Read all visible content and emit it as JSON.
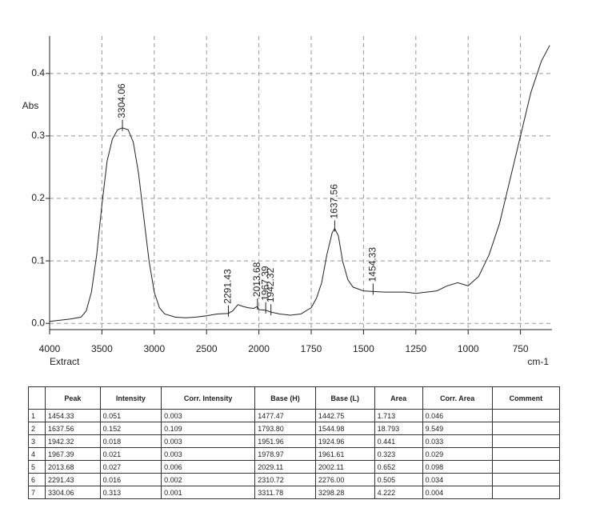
{
  "chart_data": {
    "type": "line",
    "ylabel": "Abs",
    "xlabel": "cm-1",
    "sample": "Extract",
    "x": [
      4000,
      3900,
      3800,
      3700,
      3650,
      3600,
      3550,
      3500,
      3450,
      3400,
      3350,
      3304.06,
      3250,
      3200,
      3150,
      3100,
      3050,
      3000,
      2950,
      2900,
      2800,
      2700,
      2600,
      2500,
      2400,
      2291.43,
      2250,
      2200,
      2150,
      2100,
      2050,
      2013.68,
      2000,
      1967.39,
      1942.32,
      1900,
      1850,
      1800,
      1750,
      1725,
      1700,
      1675,
      1650,
      1637.56,
      1620,
      1600,
      1575,
      1550,
      1500,
      1454.33,
      1400,
      1300,
      1250,
      1200,
      1150,
      1100,
      1050,
      1000,
      950,
      900,
      850,
      800,
      750,
      700,
      650,
      610
    ],
    "values": [
      0.003,
      0.005,
      0.007,
      0.01,
      0.02,
      0.05,
      0.11,
      0.19,
      0.26,
      0.295,
      0.31,
      0.313,
      0.31,
      0.29,
      0.24,
      0.17,
      0.1,
      0.05,
      0.025,
      0.015,
      0.01,
      0.009,
      0.01,
      0.012,
      0.015,
      0.016,
      0.02,
      0.03,
      0.027,
      0.025,
      0.024,
      0.027,
      0.022,
      0.021,
      0.018,
      0.015,
      0.013,
      0.015,
      0.025,
      0.04,
      0.065,
      0.11,
      0.145,
      0.152,
      0.14,
      0.1,
      0.07,
      0.058,
      0.052,
      0.051,
      0.05,
      0.05,
      0.048,
      0.05,
      0.052,
      0.06,
      0.065,
      0.06,
      0.075,
      0.11,
      0.16,
      0.23,
      0.3,
      0.37,
      0.42,
      0.445
    ],
    "color": "#222222",
    "xlim": [
      4000,
      600
    ],
    "ylim": [
      -0.01,
      0.46
    ],
    "xticks": [
      4000,
      3500,
      3000,
      2500,
      2000,
      1750,
      1500,
      1250,
      1000,
      750
    ],
    "yticks": [
      {
        "value": 0,
        "label": "0.0"
      },
      0.1,
      0.2,
      0.3,
      0.4
    ],
    "grid": true,
    "annotations": [
      {
        "x": 3304.06,
        "y": 0.313
      },
      {
        "x": 2291.43,
        "y": 0.016
      },
      {
        "x": 2013.68,
        "y": 0.027
      },
      {
        "x": 1967.39,
        "y": 0.021
      },
      {
        "x": 1942.32,
        "y": 0.018
      },
      {
        "x": 1637.56,
        "y": 0.152
      },
      {
        "x": 1454.33,
        "y": 0.051
      }
    ]
  },
  "table": {
    "headers": [
      "Peak",
      "Intensity",
      "Corr. Intensity",
      "Base (H)",
      "Base (L)",
      "Area",
      "Corr. Area",
      "Comment"
    ],
    "rows": [
      [
        "1",
        "1454.33",
        "0.051",
        "0.003",
        "1477.47",
        "1442.75",
        "1.713",
        "0.046"
      ],
      [
        "2",
        "1637.56",
        "0.152",
        "0.109",
        "1793.80",
        "1544.98",
        "18.793",
        "9.549"
      ],
      [
        "3",
        "1942.32",
        "0.018",
        "0.003",
        "1951.96",
        "1924.96",
        "0.441",
        "0.033"
      ],
      [
        "4",
        "1967.39",
        "0.021",
        "0.003",
        "1978.97",
        "1961.61",
        "0.323",
        "0.029"
      ],
      [
        "5",
        "2013.68",
        "0.027",
        "0.006",
        "2029.11",
        "2002.11",
        "0.652",
        "0.098"
      ],
      [
        "6",
        "2291.43",
        "0.016",
        "0.002",
        "2310.72",
        "2276.00",
        "0.505",
        "0.034"
      ],
      [
        "7",
        "3304.06",
        "0.313",
        "0.001",
        "3311.78",
        "3298.28",
        "4.222",
        "0.004"
      ]
    ]
  }
}
